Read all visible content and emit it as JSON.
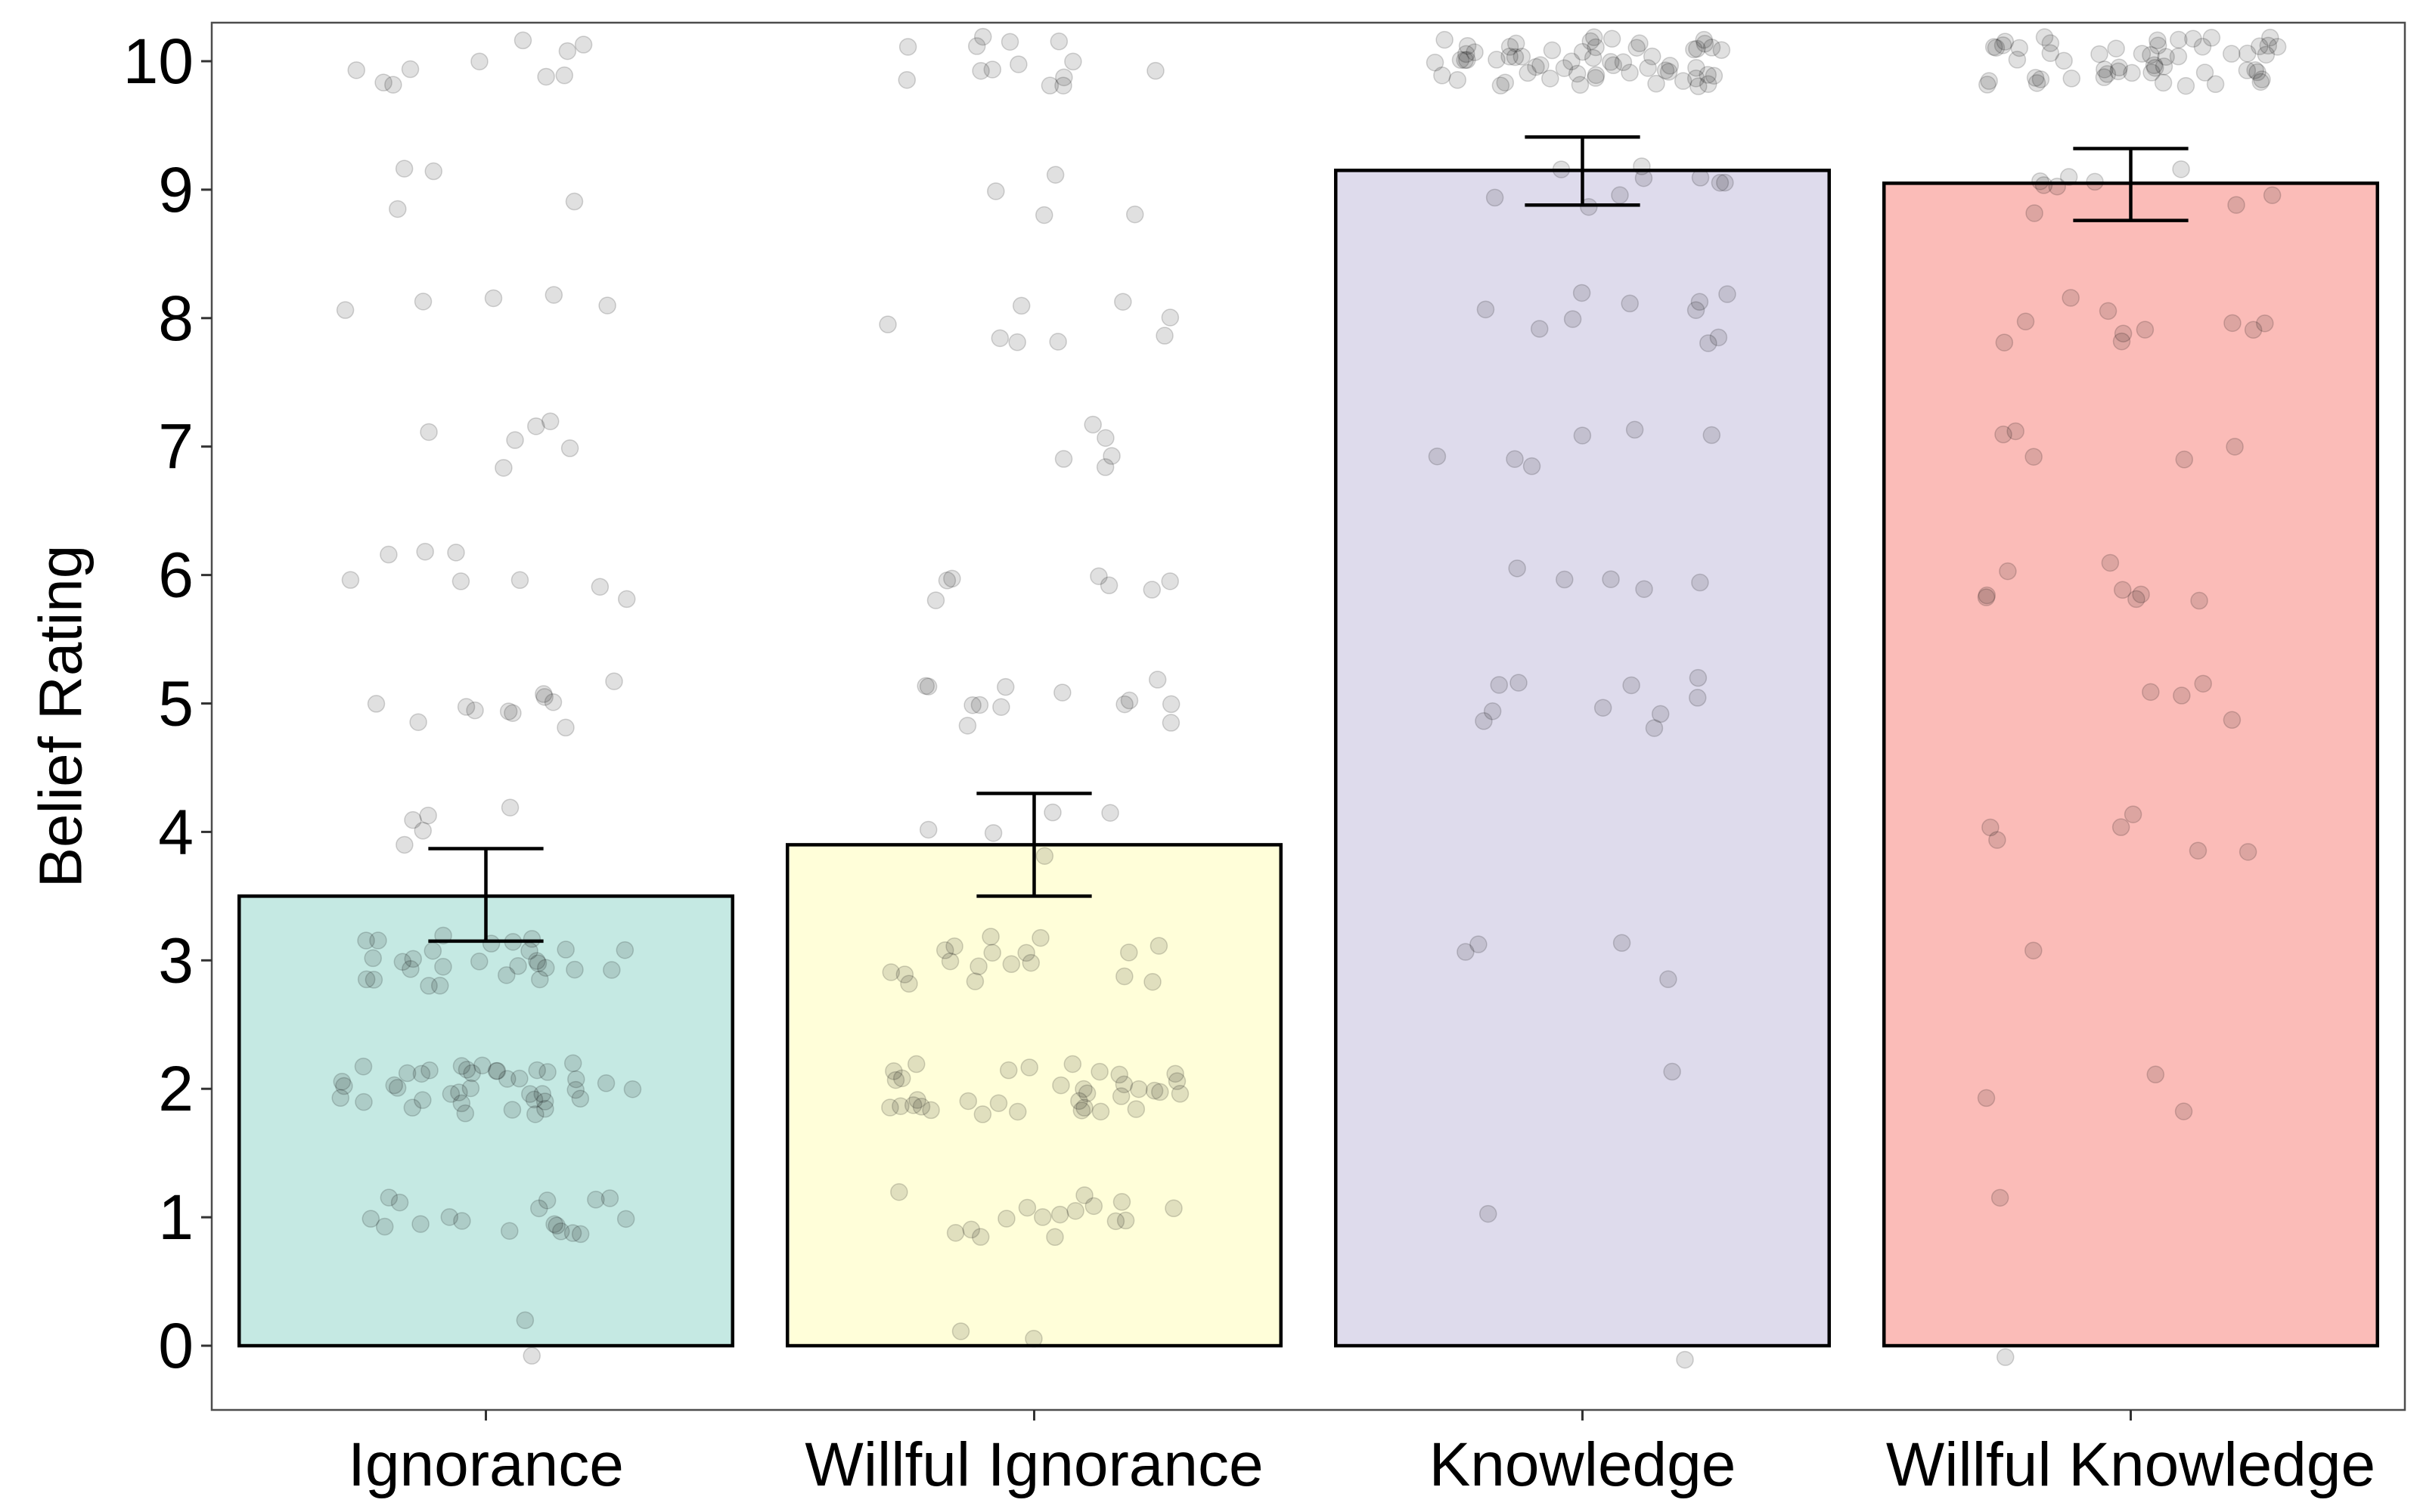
{
  "chart_data": {
    "type": "bar",
    "ylabel": "Belief Rating",
    "xlabel": "",
    "ylim": [
      -0.5,
      10.3
    ],
    "yticks": [
      0,
      1,
      2,
      3,
      4,
      5,
      6,
      7,
      8,
      9,
      10
    ],
    "ytick_labels": [
      "0",
      "1",
      "2",
      "3",
      "4",
      "5",
      "6",
      "7",
      "8",
      "9",
      "10"
    ],
    "categories": [
      "Ignorance",
      "Willful Ignorance",
      "Knowledge",
      "Willful Knowledge"
    ],
    "values": [
      3.5,
      3.9,
      9.15,
      9.05
    ],
    "error_low": [
      3.15,
      3.5,
      8.88,
      8.76
    ],
    "error_high": [
      3.87,
      4.3,
      9.41,
      9.32
    ],
    "colors": [
      "#c5e9e3",
      "#fffed9",
      "#dedbec",
      "#fbbcb8"
    ],
    "bar_edge_color": "#000000",
    "point_color": "#000000",
    "point_opacity": 0.12,
    "grid": false,
    "points": [
      {
        "values": [
          0,
          0,
          1,
          1,
          1,
          1,
          1,
          1,
          1,
          1,
          1,
          1,
          1,
          1,
          1,
          1,
          1,
          1,
          1,
          1,
          2,
          2,
          2,
          2,
          2,
          2,
          2,
          2,
          2,
          2,
          2,
          2,
          2,
          2,
          2,
          2,
          2,
          2,
          2,
          2,
          2,
          2,
          2,
          2,
          2,
          2,
          2,
          2,
          2,
          2,
          2,
          2,
          2,
          2,
          2,
          2,
          2,
          2,
          2,
          2,
          3,
          3,
          3,
          3,
          3,
          3,
          3,
          3,
          3,
          3,
          3,
          3,
          3,
          3,
          3,
          3,
          3,
          3,
          3,
          3,
          3,
          3,
          3,
          3,
          3,
          3,
          3,
          3,
          4,
          4,
          4,
          4,
          4,
          5,
          5,
          5,
          5,
          5,
          5,
          5,
          5,
          5,
          5,
          5,
          6,
          6,
          6,
          6,
          6,
          6,
          6,
          6,
          7,
          7,
          7,
          7,
          7,
          7,
          8,
          8,
          8,
          8,
          8,
          9,
          9,
          9,
          9,
          10,
          10,
          10,
          10,
          10,
          10,
          10,
          10,
          10,
          10
        ]
      },
      {
        "values": [
          0,
          0,
          1,
          1,
          1,
          1,
          1,
          1,
          1,
          1,
          1,
          1,
          1,
          1,
          1,
          1,
          1,
          1,
          2,
          2,
          2,
          2,
          2,
          2,
          2,
          2,
          2,
          2,
          2,
          2,
          2,
          2,
          2,
          2,
          2,
          2,
          2,
          2,
          2,
          2,
          2,
          2,
          2,
          2,
          2,
          2,
          2,
          2,
          2,
          2,
          2,
          2,
          2,
          3,
          3,
          3,
          3,
          3,
          3,
          3,
          3,
          3,
          3,
          3,
          3,
          3,
          3,
          3,
          3,
          3,
          3,
          4,
          4,
          4,
          4,
          4,
          5,
          5,
          5,
          5,
          5,
          5,
          5,
          5,
          5,
          5,
          5,
          5,
          5,
          6,
          6,
          6,
          6,
          6,
          6,
          6,
          7,
          7,
          7,
          7,
          7,
          8,
          8,
          8,
          8,
          8,
          8,
          8,
          8,
          9,
          9,
          9,
          9,
          10,
          10,
          10,
          10,
          10,
          10,
          10,
          10,
          10,
          10,
          10,
          10,
          10,
          10
        ]
      },
      {
        "values": [
          0,
          1,
          2,
          3,
          3,
          3,
          3,
          5,
          5,
          5,
          5,
          5,
          5,
          5,
          5,
          5,
          5,
          6,
          6,
          6,
          6,
          6,
          7,
          7,
          7,
          7,
          7,
          7,
          8,
          8,
          8,
          8,
          8,
          8,
          8,
          8,
          8,
          8,
          9,
          9,
          9,
          9,
          9,
          9,
          9,
          9,
          9,
          10,
          10,
          10,
          10,
          10,
          10,
          10,
          10,
          10,
          10,
          10,
          10,
          10,
          10,
          10,
          10,
          10,
          10,
          10,
          10,
          10,
          10,
          10,
          10,
          10,
          10,
          10,
          10,
          10,
          10,
          10,
          10,
          10,
          10,
          10,
          10,
          10,
          10,
          10,
          10,
          10,
          10,
          10,
          10,
          10,
          10,
          10,
          10,
          10,
          10,
          10,
          10,
          10,
          10,
          10,
          10,
          10,
          10,
          10,
          10
        ]
      },
      {
        "values": [
          0,
          1,
          2,
          2,
          2,
          3,
          4,
          4,
          4,
          4,
          4,
          4,
          5,
          5,
          5,
          5,
          6,
          6,
          6,
          6,
          6,
          6,
          6,
          6,
          7,
          7,
          7,
          7,
          7,
          8,
          8,
          8,
          8,
          8,
          8,
          8,
          8,
          8,
          8,
          9,
          9,
          9,
          9,
          9,
          9,
          9,
          9,
          9,
          10,
          10,
          10,
          10,
          10,
          10,
          10,
          10,
          10,
          10,
          10,
          10,
          10,
          10,
          10,
          10,
          10,
          10,
          10,
          10,
          10,
          10,
          10,
          10,
          10,
          10,
          10,
          10,
          10,
          10,
          10,
          10,
          10,
          10,
          10,
          10,
          10,
          10,
          10,
          10,
          10,
          10,
          10,
          10,
          10,
          10,
          10,
          10,
          10,
          10,
          10,
          10,
          10,
          10
        ]
      }
    ]
  }
}
